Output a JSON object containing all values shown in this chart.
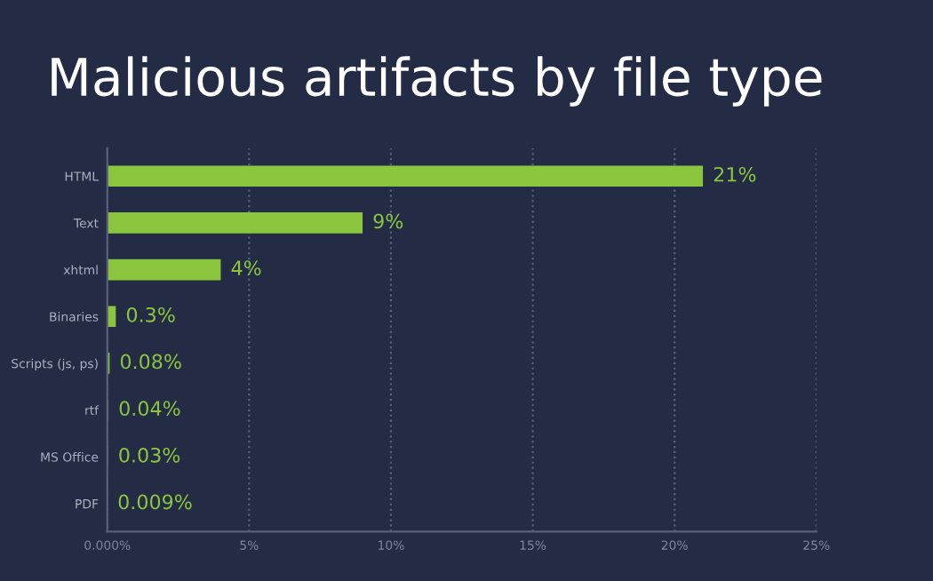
{
  "chart_data": {
    "type": "bar",
    "orientation": "horizontal",
    "title": "Malicious artifacts by file type",
    "categories": [
      "HTML",
      "Text",
      "xhtml",
      "Binaries",
      "Scripts (js, ps)",
      "rtf",
      "MS Office",
      "PDF"
    ],
    "values": [
      21,
      9,
      4,
      0.3,
      0.08,
      0.04,
      0.03,
      0.009
    ],
    "value_labels": [
      "21%",
      "9%",
      "4%",
      "0.3%",
      "0.08%",
      "0.04%",
      "0.03%",
      "0.009%"
    ],
    "color": "#8cc63f",
    "xlim": [
      0,
      25
    ],
    "xticks": [
      {
        "value": 0,
        "label": "0.000%"
      },
      {
        "value": 5,
        "label": "5%"
      },
      {
        "value": 10,
        "label": "10%"
      },
      {
        "value": 15,
        "label": "15%"
      },
      {
        "value": 20,
        "label": "20%"
      },
      {
        "value": 25,
        "label": "25%"
      }
    ],
    "grid": "x"
  }
}
